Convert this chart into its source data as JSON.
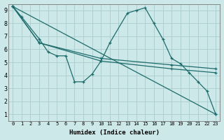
{
  "bg_color": "#cce8e8",
  "grid_color": "#aacccc",
  "line_color": "#1e6b6b",
  "xlabel": "Humidex (Indice chaleur)",
  "xlim": [
    -0.5,
    23.5
  ],
  "ylim": [
    0.5,
    9.5
  ],
  "xticks": [
    0,
    1,
    2,
    3,
    4,
    5,
    6,
    7,
    8,
    9,
    10,
    11,
    12,
    13,
    14,
    15,
    16,
    17,
    18,
    19,
    20,
    21,
    22,
    23
  ],
  "yticks": [
    1,
    2,
    3,
    4,
    5,
    6,
    7,
    8,
    9
  ],
  "series": [
    {
      "x": [
        0,
        1,
        3,
        4,
        5,
        6,
        7,
        8,
        9,
        10,
        11,
        13,
        14,
        15,
        16,
        17,
        18,
        19,
        20,
        21,
        22,
        23
      ],
      "y": [
        9.3,
        8.5,
        6.8,
        5.8,
        5.5,
        5.5,
        3.5,
        3.5,
        4.1,
        5.1,
        6.5,
        8.8,
        9.0,
        9.2,
        8.0,
        6.8,
        5.3,
        4.9,
        4.2,
        3.5,
        2.8,
        1.0
      ]
    },
    {
      "x": [
        0,
        23
      ],
      "y": [
        9.3,
        1.0
      ]
    },
    {
      "x": [
        0,
        3,
        10,
        18,
        23
      ],
      "y": [
        9.3,
        6.5,
        5.3,
        4.8,
        4.5
      ]
    },
    {
      "x": [
        0,
        3,
        10,
        18,
        23
      ],
      "y": [
        9.3,
        6.5,
        5.1,
        4.5,
        4.2
      ]
    }
  ]
}
